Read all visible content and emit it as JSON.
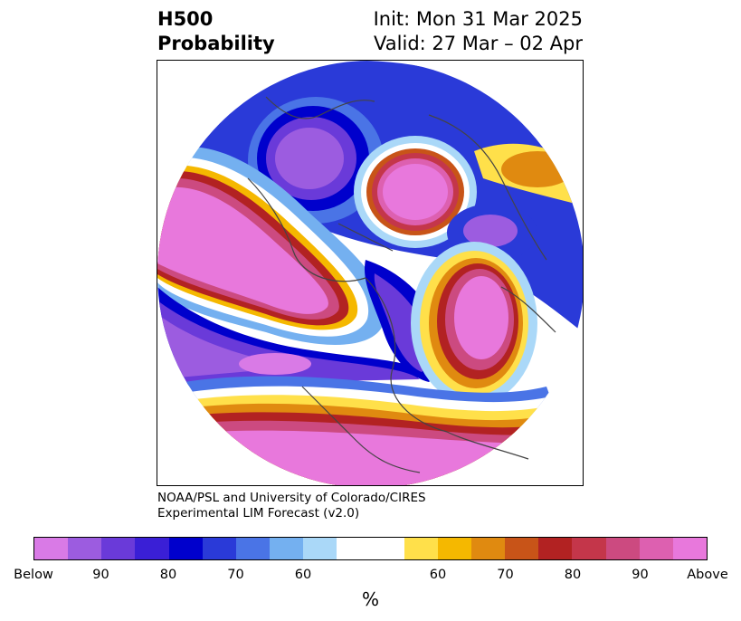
{
  "title": {
    "left_line1": "H500",
    "left_line2": "Probability",
    "right_line1": "Init: Mon 31 Mar 2025",
    "right_line2": "Valid: 27 Mar – 02 Apr"
  },
  "credit": {
    "line1": "NOAA/PSL and University of Colorado/CIRES",
    "line2": "Experimental LIM Forecast (v2.0)"
  },
  "colorbar": {
    "colors": [
      "#d97ae6",
      "#9c5ce0",
      "#6a3ad9",
      "#3a1fd6",
      "#0000cc",
      "#2a3ad8",
      "#4a74e6",
      "#74b0f0",
      "#aad8f8",
      "#ffffff",
      "#ffe04a",
      "#f5b800",
      "#e08a10",
      "#c85418",
      "#b22222",
      "#c4364a",
      "#cc4a80",
      "#dd60b0",
      "#e878dc"
    ],
    "tick_labels": [
      "Below",
      "90",
      "80",
      "70",
      "60",
      "60",
      "70",
      "80",
      "90",
      "Above"
    ],
    "unit": "%"
  },
  "map": {
    "projection": "north-polar-stereographic",
    "field": "500 hPa height anomaly probability",
    "features": [
      {
        "region": "North Pacific / Aleutians",
        "category": "Above",
        "intensity": 90
      },
      {
        "region": "Eastern Siberia",
        "category": "Below",
        "intensity": 90
      },
      {
        "region": "Northern Russia / Kara Sea",
        "category": "Above",
        "intensity": 90
      },
      {
        "region": "Western Russia",
        "category": "Below",
        "intensity": 80
      },
      {
        "region": "North Atlantic",
        "category": "Above",
        "intensity": 90
      },
      {
        "region": "Canada / Greenland",
        "category": "Below",
        "intensity": 80
      },
      {
        "region": "United States",
        "category": "Above",
        "intensity": 90
      },
      {
        "region": "Middle East",
        "category": "Above",
        "intensity": 60
      }
    ]
  }
}
